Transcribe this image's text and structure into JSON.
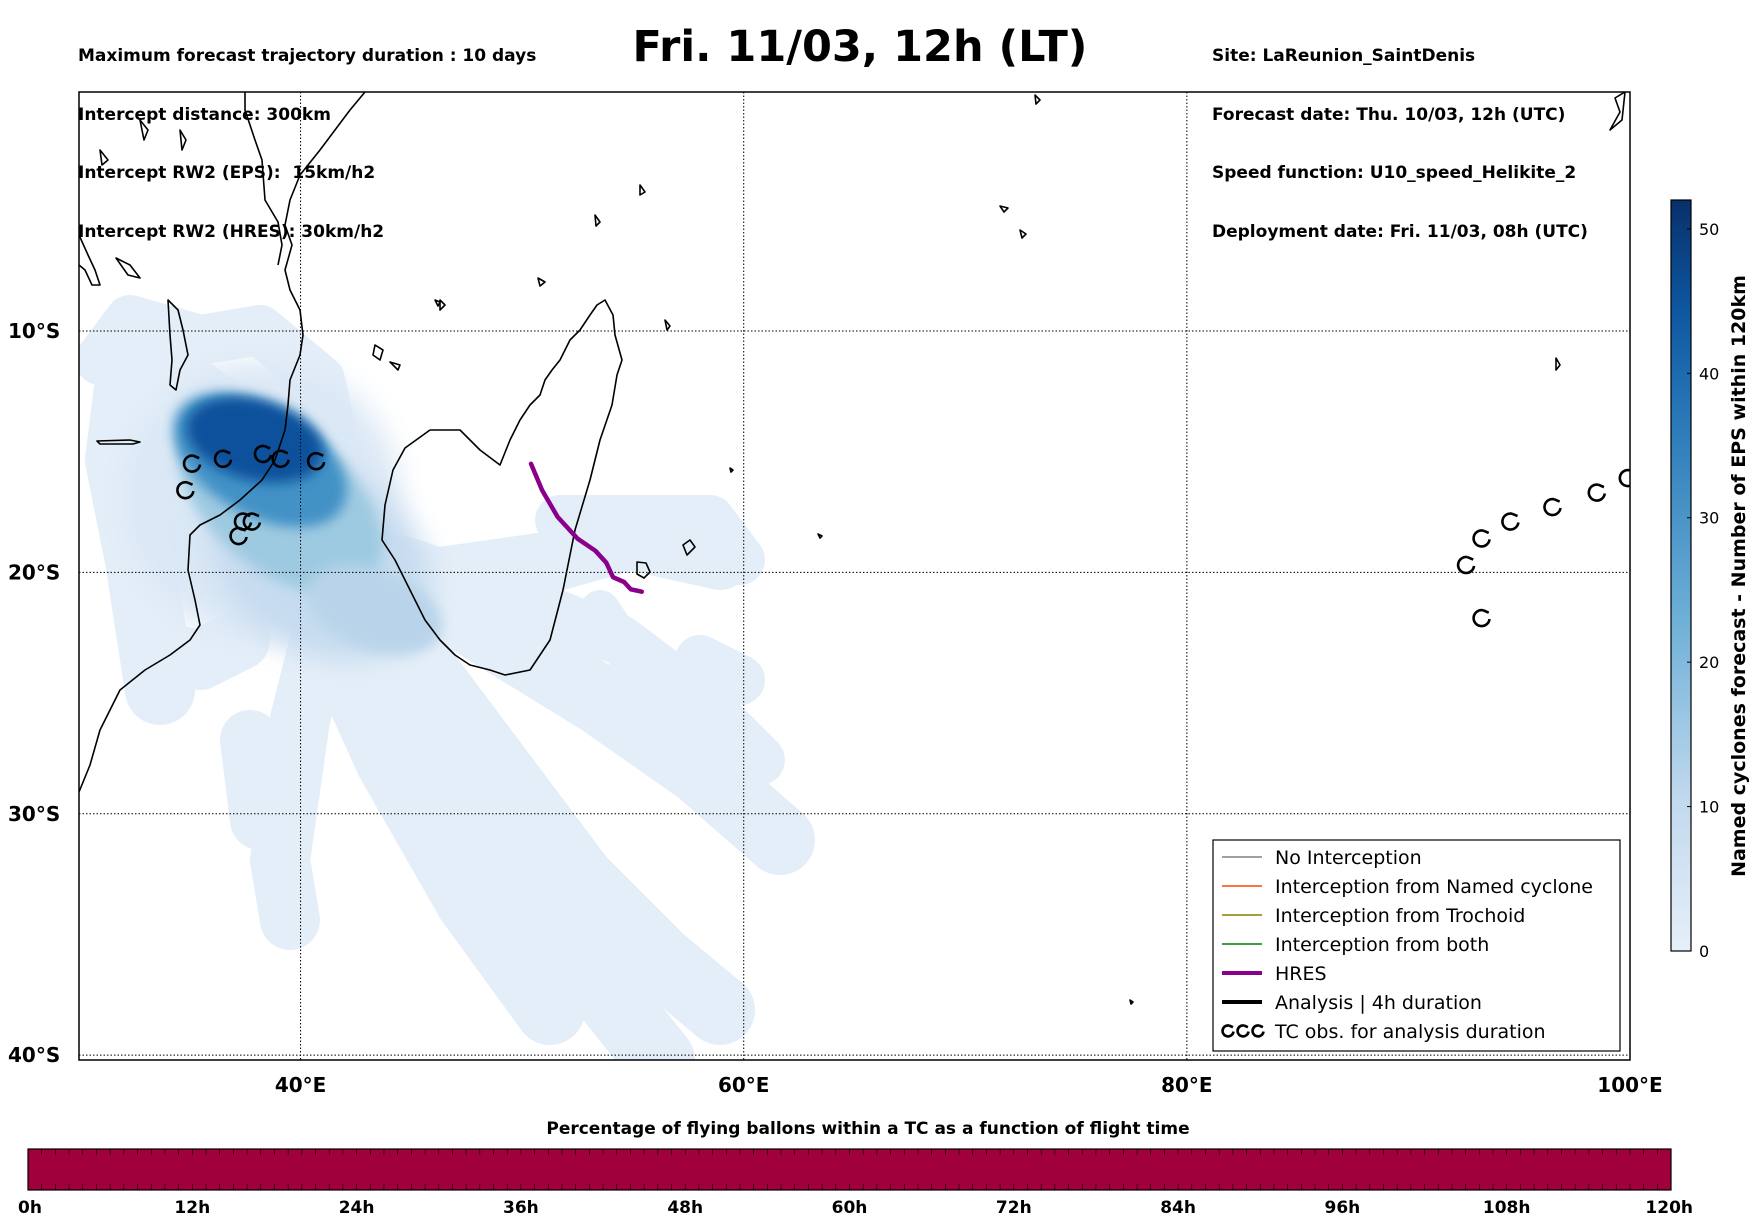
{
  "header": {
    "left_lines": [
      "Maximum forecast trajectory duration : 10 days",
      "Intercept distance: 300km",
      "Intercept RW2 (EPS):  15km/h2",
      "Intercept RW2 (HRES): 30km/h2"
    ],
    "title": "Fri. 11/03, 12h (LT)",
    "right_lines": [
      "Site: LaReunion_SaintDenis",
      "Forecast date: Thu. 10/03, 12h (UTC)",
      "Speed function: U10_speed_Helikite_2",
      "Deployment date: Fri. 11/03, 08h (UTC)"
    ]
  },
  "map": {
    "lon_range": [
      30,
      100
    ],
    "lat_range": [
      -40.2,
      -0.1
    ],
    "lon_ticks": [
      {
        "value": 40,
        "label": "40°E"
      },
      {
        "value": 60,
        "label": "60°E"
      },
      {
        "value": 80,
        "label": "80°E"
      },
      {
        "value": 100,
        "label": "100°E"
      }
    ],
    "lat_ticks": [
      {
        "value": -10,
        "label": "10°S"
      },
      {
        "value": -20,
        "label": "20°S"
      },
      {
        "value": -30,
        "label": "30°S"
      },
      {
        "value": -40,
        "label": "40°S"
      }
    ],
    "hres_track": [
      [
        50.4,
        -15.5
      ],
      [
        50.9,
        -16.6
      ],
      [
        51.6,
        -17.7
      ],
      [
        52.5,
        -18.6
      ],
      [
        53.3,
        -19.1
      ],
      [
        53.8,
        -19.6
      ],
      [
        54.1,
        -20.2
      ],
      [
        54.6,
        -20.4
      ],
      [
        54.9,
        -20.7
      ],
      [
        55.4,
        -20.8
      ]
    ],
    "tc_obs": [
      [
        35.1,
        -15.5
      ],
      [
        36.5,
        -15.3
      ],
      [
        38.3,
        -15.1
      ],
      [
        39.1,
        -15.3
      ],
      [
        40.7,
        -15.4
      ],
      [
        34.8,
        -16.6
      ],
      [
        37.4,
        -17.9
      ],
      [
        37.8,
        -17.9
      ],
      [
        37.2,
        -18.5
      ],
      [
        92.6,
        -19.7
      ],
      [
        93.3,
        -18.6
      ],
      [
        94.6,
        -17.9
      ],
      [
        96.5,
        -17.3
      ],
      [
        98.5,
        -16.7
      ],
      [
        99.9,
        -16.1
      ],
      [
        93.3,
        -21.9
      ]
    ],
    "hres_color": "#8b008b"
  },
  "colorbar": {
    "title": "Named cyclones forecast - Number of EPS within 120km",
    "range": [
      0,
      52
    ],
    "ticks": [
      {
        "value": 0,
        "label": "0"
      },
      {
        "value": 10,
        "label": "10"
      },
      {
        "value": 20,
        "label": "20"
      },
      {
        "value": 30,
        "label": "30"
      },
      {
        "value": 40,
        "label": "40"
      },
      {
        "value": 50,
        "label": "50"
      }
    ],
    "color_low": "#e6eff9",
    "color_high": "#08306b"
  },
  "legend": {
    "items": [
      {
        "label": "No Interception",
        "color": "#808080",
        "kind": "thin-line"
      },
      {
        "label": "Interception from Named cyclone",
        "color": "#ff4500",
        "kind": "thin-line"
      },
      {
        "label": "Interception from Trochoid",
        "color": "#808000",
        "kind": "thin-line"
      },
      {
        "label": "Interception from both",
        "color": "#008000",
        "kind": "thin-line"
      },
      {
        "label": "HRES",
        "color": "#8b008b",
        "kind": "thick-line"
      },
      {
        "label": "Analysis | 4h duration",
        "color": "#000000",
        "kind": "thick-line"
      },
      {
        "label": "TC obs. for analysis duration",
        "color": "#000000",
        "kind": "tc-symbols"
      }
    ]
  },
  "flight_bar": {
    "title": "Percentage of flying ballons within a TC as a function of flight time",
    "fill_color": "#a0003c",
    "ticks": [
      "0h",
      "12h",
      "24h",
      "36h",
      "48h",
      "60h",
      "72h",
      "84h",
      "96h",
      "108h",
      "120h"
    ]
  }
}
